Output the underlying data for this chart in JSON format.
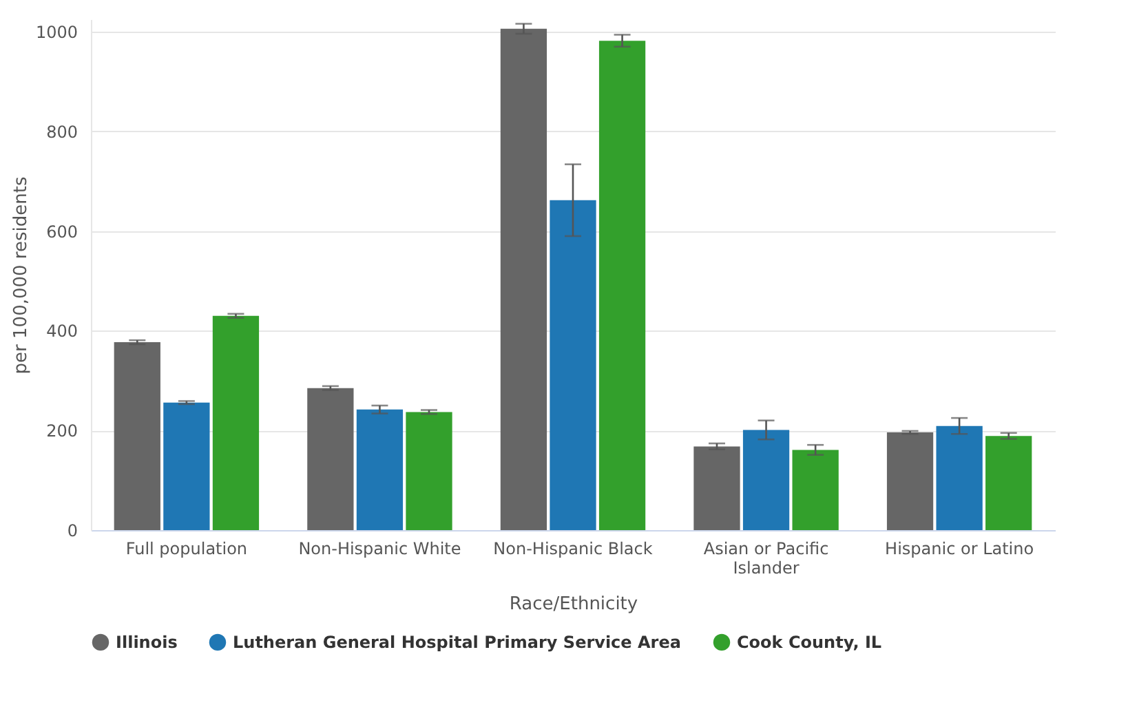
{
  "chart_data": {
    "type": "bar",
    "xlabel": "Race/Ethnicity",
    "ylabel": "per 100,000 residents",
    "categories": [
      "Full population",
      "Non-Hispanic White",
      "Non-Hispanic Black",
      "Asian or Pacific Islander",
      "Hispanic or Latino"
    ],
    "series": [
      {
        "name": "Illinois",
        "color": "#666666",
        "values": [
          377,
          285,
          1006,
          168,
          196
        ],
        "errors": [
          4,
          4,
          10,
          6,
          3
        ]
      },
      {
        "name": "Lutheran General Hospital Primary Service Area",
        "color": "#1f77b4",
        "values": [
          256,
          242,
          662,
          201,
          209
        ],
        "errors": [
          3,
          8,
          72,
          19,
          16
        ]
      },
      {
        "name": "Cook County, IL",
        "color": "#33a02c",
        "values": [
          430,
          237,
          982,
          161,
          189
        ],
        "errors": [
          4,
          4,
          12,
          10,
          6
        ]
      }
    ],
    "ylim": [
      0,
      1025
    ],
    "yticks": [
      0,
      200,
      400,
      600,
      800,
      1000
    ],
    "grid": "y",
    "legend": "bottom"
  }
}
